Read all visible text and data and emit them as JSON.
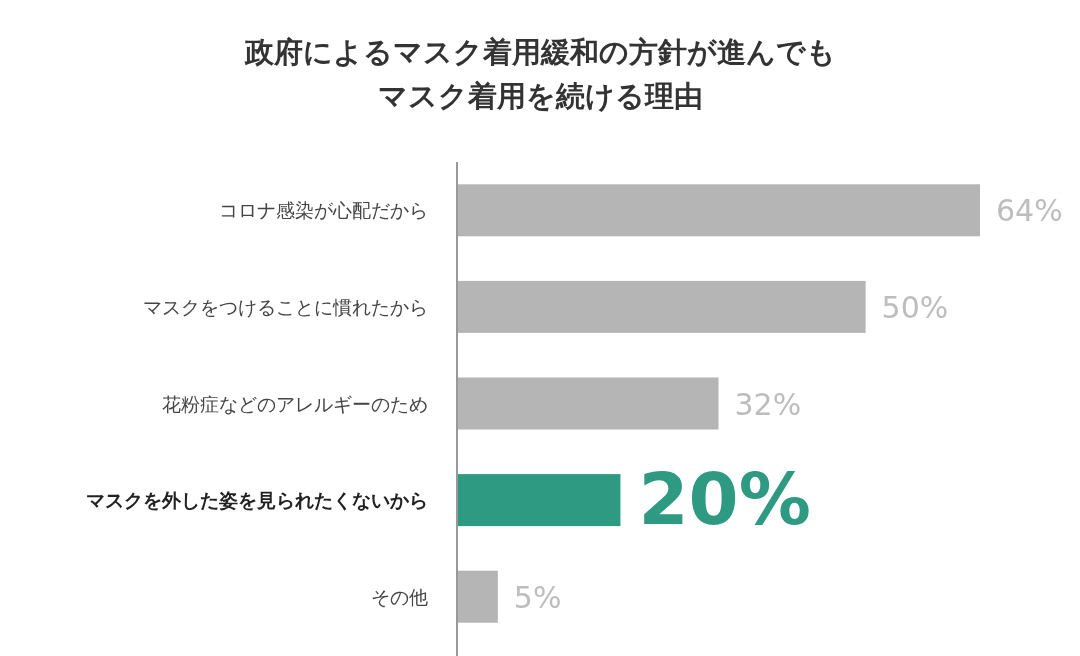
{
  "chart_data": {
    "type": "bar",
    "orientation": "horizontal",
    "title": "政府によるマスク着用緩和の方針が進んでもマスク着用を続ける理由",
    "categories": [
      "コロナ感染が心配だから",
      "マスクをつけることに慣れたから",
      "花粉症などのアレルギーのため",
      "マスクを外した姿を見られたくないから",
      "その他"
    ],
    "values": [
      64,
      50,
      32,
      20,
      5
    ],
    "value_labels": [
      "64%",
      "50%",
      "32%",
      "20%",
      "5%"
    ],
    "colors": [
      "#b5b5b5",
      "#b5b5b5",
      "#b5b5b5",
      "#2e9a82",
      "#b5b5b5"
    ]
  }
}
